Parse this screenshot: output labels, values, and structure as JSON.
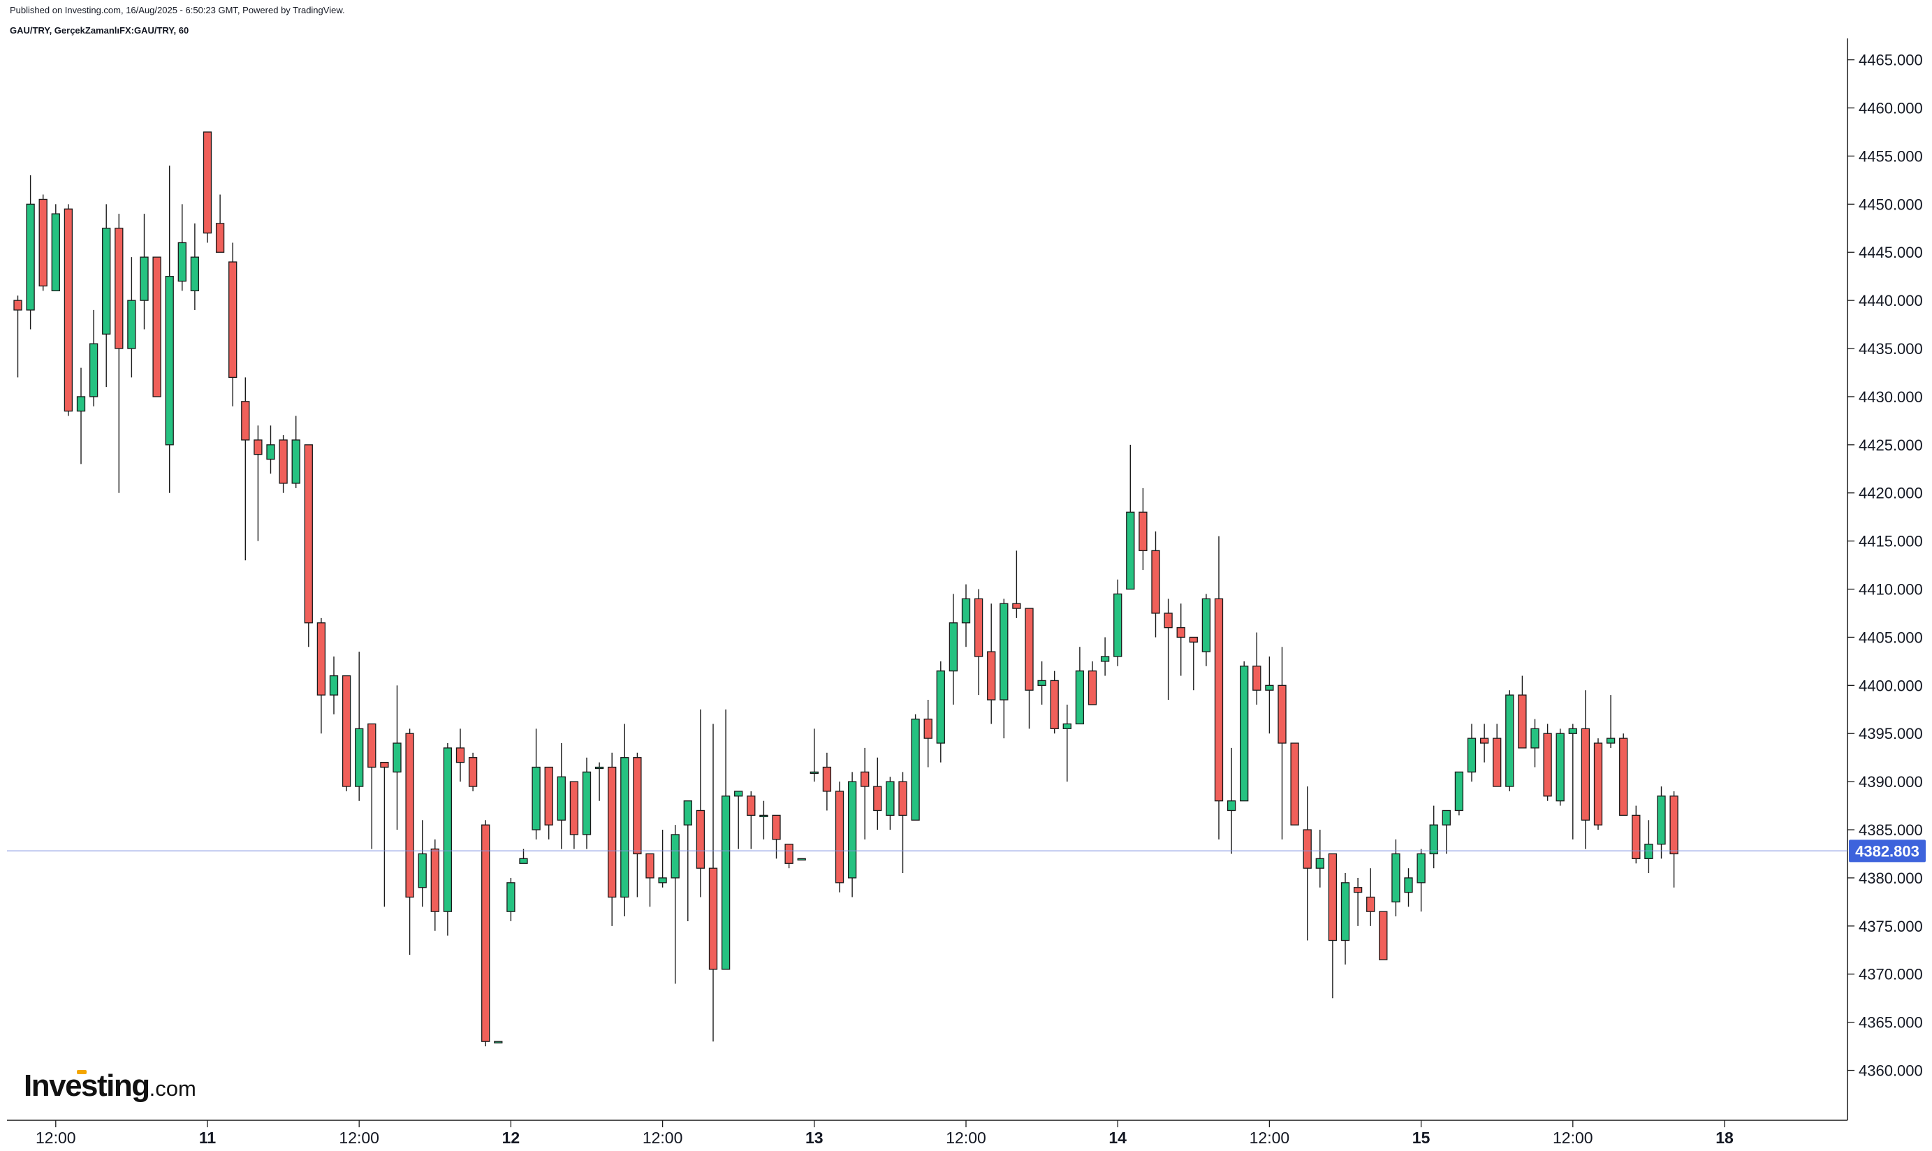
{
  "header": {
    "published": "Published on Investing.com, 16/Aug/2025 - 6:50:23 GMT, Powered by TradingView.",
    "symbol": "GAU/TRY, GerçekZamanlıFX:GAU/TRY, 60"
  },
  "logo": {
    "brand": "Investing",
    "tld": ".com"
  },
  "colors": {
    "up": "#26c281",
    "down": "#f0605a",
    "outline": "#1a1a1a",
    "last_price_line": "#8093e0",
    "last_price_label": "#3d63dc"
  },
  "chart_data": {
    "type": "candlestick",
    "ylim": [
      4356,
      4468
    ],
    "y_ticks": [
      4465,
      4460,
      4455,
      4450,
      4445,
      4440,
      4435,
      4430,
      4425,
      4420,
      4415,
      4410,
      4405,
      4400,
      4395,
      4390,
      4385,
      4380,
      4375,
      4370,
      4365,
      4360
    ],
    "y_tick_labels": [
      "4465.000",
      "4460.000",
      "4455.000",
      "4450.000",
      "4445.000",
      "4440.000",
      "4435.000",
      "4430.000",
      "4425.000",
      "4420.000",
      "4415.000",
      "4410.000",
      "4405.000",
      "4400.000",
      "4395.000",
      "4390.000",
      "4385.000",
      "4380.000",
      "4375.000",
      "4370.000",
      "4365.000",
      "4360.000"
    ],
    "x_ticks": [
      {
        "index": 3,
        "label": "12:00",
        "bold": false
      },
      {
        "index": 15,
        "label": "11",
        "bold": true
      },
      {
        "index": 27,
        "label": "12:00",
        "bold": false
      },
      {
        "index": 39,
        "label": "12",
        "bold": true
      },
      {
        "index": 51,
        "label": "12:00",
        "bold": false
      },
      {
        "index": 63,
        "label": "13",
        "bold": true
      },
      {
        "index": 75,
        "label": "12:00",
        "bold": false
      },
      {
        "index": 87,
        "label": "14",
        "bold": true
      },
      {
        "index": 99,
        "label": "12:00",
        "bold": false
      },
      {
        "index": 111,
        "label": "15",
        "bold": true
      },
      {
        "index": 123,
        "label": "12:00",
        "bold": false
      },
      {
        "index": 135,
        "label": "18",
        "bold": true
      }
    ],
    "last_price": 4382.803,
    "last_price_label": "4382.803",
    "candles": [
      [
        4440,
        4440.5,
        4432,
        4439
      ],
      [
        4439,
        4453,
        4437,
        4450
      ],
      [
        4450.5,
        4451,
        4441,
        4441.5
      ],
      [
        4441,
        4450,
        4441,
        4449
      ],
      [
        4449.5,
        4450,
        4428,
        4428.5
      ],
      [
        4428.5,
        4433,
        4423,
        4430
      ],
      [
        4430,
        4439,
        4429,
        4435.5
      ],
      [
        4436.5,
        4450,
        4431,
        4447.5
      ],
      [
        4447.5,
        4449,
        4420,
        4435
      ],
      [
        4435,
        4444.5,
        4432,
        4440
      ],
      [
        4440,
        4449,
        4437,
        4444.5
      ],
      [
        4444.5,
        4444.5,
        4430,
        4430
      ],
      [
        4425,
        4454,
        4420,
        4442.5
      ],
      [
        4442,
        4450,
        4441,
        4446
      ],
      [
        4441,
        4448,
        4439,
        4444.5
      ],
      [
        4457.5,
        4457.5,
        4446,
        4447
      ],
      [
        4448,
        4451,
        4445,
        4445
      ],
      [
        4444,
        4446,
        4429,
        4432
      ],
      [
        4429.5,
        4432,
        4413,
        4425.5
      ],
      [
        4425.5,
        4427,
        4415,
        4424
      ],
      [
        4423.5,
        4427,
        4422,
        4425
      ],
      [
        4425.5,
        4426,
        4420,
        4421
      ],
      [
        4421,
        4428,
        4420.5,
        4425.5
      ],
      [
        4425,
        4425,
        4404,
        4406.5
      ],
      [
        4406.5,
        4407,
        4395,
        4399
      ],
      [
        4399,
        4403,
        4397,
        4401
      ],
      [
        4401,
        4401,
        4389,
        4389.5
      ],
      [
        4389.5,
        4403.5,
        4388,
        4395.5
      ],
      [
        4396,
        4396,
        4383,
        4391.5
      ],
      [
        4392,
        4392,
        4377,
        4391.5
      ],
      [
        4391,
        4400,
        4385,
        4394
      ],
      [
        4395,
        4395.5,
        4372,
        4378
      ],
      [
        4379,
        4386,
        4377,
        4382.5
      ],
      [
        4383,
        4384,
        4374.5,
        4376.5
      ],
      [
        4376.5,
        4394,
        4374,
        4393.5
      ],
      [
        4393.5,
        4395.5,
        4390,
        4392
      ],
      [
        4392.5,
        4393,
        4389,
        4389.5
      ],
      [
        4385.5,
        4386,
        4362.5,
        4363
      ],
      [
        4363,
        4363,
        4363,
        4363
      ],
      [
        4376.5,
        4380,
        4375.5,
        4379.5
      ],
      [
        4381.5,
        4383,
        4381.5,
        4382
      ],
      [
        4385,
        4395.5,
        4384,
        4391.5
      ],
      [
        4391.5,
        4391.5,
        4384,
        4385.5
      ],
      [
        4386,
        4394,
        4383,
        4390.5
      ],
      [
        4390,
        4390,
        4383,
        4384.5
      ],
      [
        4384.5,
        4392.5,
        4383,
        4391
      ],
      [
        4391.5,
        4392,
        4388,
        4391.5
      ],
      [
        4391.5,
        4393,
        4375,
        4378
      ],
      [
        4378,
        4396,
        4376,
        4392.5
      ],
      [
        4392.5,
        4393,
        4378,
        4382.5
      ],
      [
        4382.5,
        4382.5,
        4377,
        4380
      ],
      [
        4379.5,
        4385,
        4379,
        4380
      ],
      [
        4380,
        4385.5,
        4369,
        4384.5
      ],
      [
        4385.5,
        4388,
        4375.5,
        4388
      ],
      [
        4387,
        4397.5,
        4378,
        4381
      ],
      [
        4381,
        4396,
        4363,
        4370.5
      ],
      [
        4370.5,
        4397.5,
        4370.5,
        4388.5
      ],
      [
        4388.5,
        4389,
        4383,
        4389
      ],
      [
        4388.5,
        4389,
        4383,
        4386.5
      ],
      [
        4386.5,
        4388,
        4384,
        4386.5
      ],
      [
        4386.5,
        4386.5,
        4382,
        4384
      ],
      [
        4383.5,
        4383.5,
        4381,
        4381.5
      ],
      [
        4382,
        4382,
        4382,
        4382
      ],
      [
        4391,
        4395.5,
        4390,
        4391
      ],
      [
        4391.5,
        4393,
        4387,
        4389
      ],
      [
        4389,
        4390,
        4378.5,
        4379.5
      ],
      [
        4380,
        4391,
        4378,
        4390
      ],
      [
        4391,
        4393.5,
        4384,
        4389.5
      ],
      [
        4389.5,
        4392.5,
        4385,
        4387
      ],
      [
        4386.5,
        4390.5,
        4385,
        4390
      ],
      [
        4390,
        4391,
        4380.5,
        4386.5
      ],
      [
        4386,
        4397,
        4386,
        4396.5
      ],
      [
        4396.5,
        4398.5,
        4391.5,
        4394.5
      ],
      [
        4394,
        4402.5,
        4392,
        4401.5
      ],
      [
        4401.5,
        4409.5,
        4398,
        4406.5
      ],
      [
        4406.5,
        4410.5,
        4404,
        4409
      ],
      [
        4409,
        4410,
        4399,
        4403
      ],
      [
        4403.5,
        4408.5,
        4396,
        4398.5
      ],
      [
        4398.5,
        4409,
        4394.5,
        4408.5
      ],
      [
        4408.5,
        4414,
        4407,
        4408
      ],
      [
        4408,
        4408,
        4395.5,
        4399.5
      ],
      [
        4400,
        4402.5,
        4398,
        4400.5
      ],
      [
        4400.5,
        4401.5,
        4395,
        4395.5
      ],
      [
        4395.5,
        4398,
        4390,
        4396
      ],
      [
        4396,
        4404,
        4396,
        4401.5
      ],
      [
        4401.5,
        4402.5,
        4398,
        4398
      ],
      [
        4402.5,
        4405,
        4401,
        4403
      ],
      [
        4403,
        4411,
        4402,
        4409.5
      ],
      [
        4410,
        4425,
        4410,
        4418
      ],
      [
        4418,
        4420.5,
        4412,
        4414
      ],
      [
        4414,
        4416,
        4405,
        4407.5
      ],
      [
        4407.5,
        4409,
        4398.5,
        4406
      ],
      [
        4406,
        4408.5,
        4401,
        4405
      ],
      [
        4405,
        4405,
        4399.5,
        4404.5
      ],
      [
        4403.5,
        4409.5,
        4402,
        4409
      ],
      [
        4409,
        4415.5,
        4384,
        4388
      ],
      [
        4387,
        4393.5,
        4382.5,
        4388
      ],
      [
        4388,
        4402.5,
        4388,
        4402
      ],
      [
        4402,
        4405.5,
        4398,
        4399.5
      ],
      [
        4399.5,
        4403,
        4395,
        4400
      ],
      [
        4400,
        4404,
        4384,
        4394
      ],
      [
        4394,
        4394,
        4385.5,
        4385.5
      ],
      [
        4385,
        4389.5,
        4373.5,
        4381
      ],
      [
        4381,
        4385,
        4379,
        4382
      ],
      [
        4382.5,
        4382.5,
        4367.5,
        4373.5
      ],
      [
        4373.5,
        4380.5,
        4371,
        4379.5
      ],
      [
        4379,
        4380,
        4375,
        4378.5
      ],
      [
        4378,
        4381,
        4375,
        4376.5
      ],
      [
        4376.5,
        4376.5,
        4371.5,
        4371.5
      ],
      [
        4377.5,
        4384,
        4376,
        4382.5
      ],
      [
        4378.5,
        4381,
        4377,
        4380
      ],
      [
        4379.5,
        4383,
        4376.5,
        4382.5
      ],
      [
        4382.5,
        4387.5,
        4381,
        4385.5
      ],
      [
        4385.5,
        4387,
        4382.5,
        4387
      ],
      [
        4387,
        4391,
        4386.5,
        4391
      ],
      [
        4391,
        4396,
        4390,
        4394.5
      ],
      [
        4394.5,
        4396,
        4392,
        4394
      ],
      [
        4394.5,
        4396,
        4389.5,
        4389.5
      ],
      [
        4389.5,
        4399.5,
        4389,
        4399
      ],
      [
        4399,
        4401,
        4393.5,
        4393.5
      ],
      [
        4393.5,
        4396.5,
        4391.5,
        4395.5
      ],
      [
        4395,
        4396,
        4388,
        4388.5
      ],
      [
        4388,
        4395.5,
        4387.5,
        4395
      ],
      [
        4395,
        4396,
        4384,
        4395.5
      ],
      [
        4395.5,
        4399.5,
        4383,
        4386
      ],
      [
        4394,
        4394.5,
        4385,
        4385.5
      ],
      [
        4394,
        4399,
        4393.5,
        4394.5
      ],
      [
        4394.5,
        4395,
        4387.5,
        4386.5
      ],
      [
        4386.5,
        4387.5,
        4381.5,
        4382
      ],
      [
        4382,
        4386,
        4380.5,
        4383.5
      ],
      [
        4383.5,
        4389.5,
        4382,
        4388.5
      ],
      [
        4388.5,
        4389,
        4379,
        4382.5
      ]
    ]
  }
}
